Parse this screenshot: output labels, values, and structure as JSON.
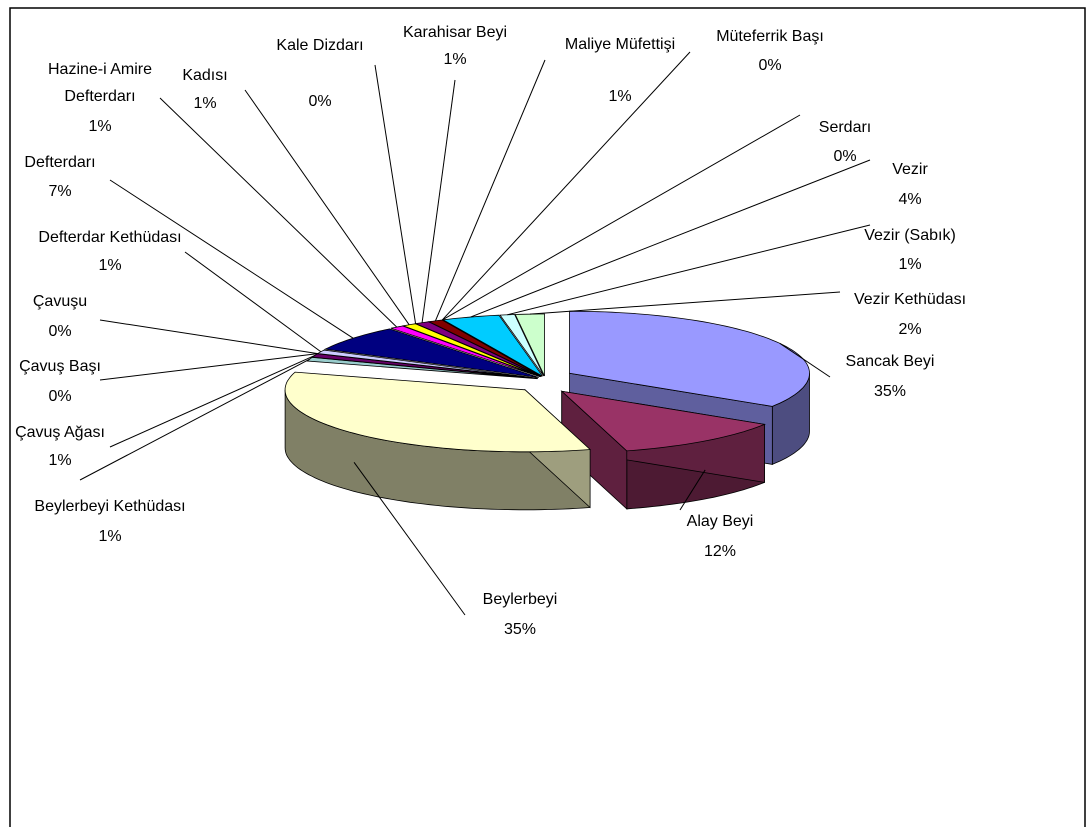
{
  "chart_data": {
    "type": "pie",
    "categories": [
      "Sancak Beyi",
      "Alay Beyi",
      "Beylerbeyi",
      "Beylerbeyi Kethüdası",
      "Çavuş Ağası",
      "Çavuş Başı",
      "Çavuşu",
      "Defterdar Kethüdası",
      "Defterdarı",
      "Hazine-i Amire Defterdarı",
      "Kadısı",
      "Kale Dizdarı",
      "Karahisar Beyi",
      "Maliye Müfettişi",
      "Müteferrik Başı",
      "Serdarı",
      "Vezir",
      "Vezir (Sabık)",
      "Vezir Kethüdası"
    ],
    "values": [
      35,
      12,
      35,
      1,
      1,
      0,
      0,
      1,
      7,
      1,
      1,
      0,
      1,
      1,
      0,
      0,
      4,
      1,
      2
    ],
    "value_labels": [
      "35%",
      "12%",
      "35%",
      "1%",
      "1%",
      "0%",
      "0%",
      "1%",
      "7%",
      "1%",
      "1%",
      "0%",
      "1%",
      "1%",
      "0%",
      "0%",
      "4%",
      "1%",
      "2%"
    ],
    "colors": [
      "#9999ff",
      "#993366",
      "#ffffcc",
      "#99cccc",
      "#660066",
      "#ff8080",
      "#0066cc",
      "#ccccff",
      "#000080",
      "#ff00ff",
      "#ffff00",
      "#00ffff",
      "#800080",
      "#800000",
      "#008080",
      "#0000ff",
      "#00ccff",
      "#ccffff",
      "#ccffcc"
    ]
  }
}
